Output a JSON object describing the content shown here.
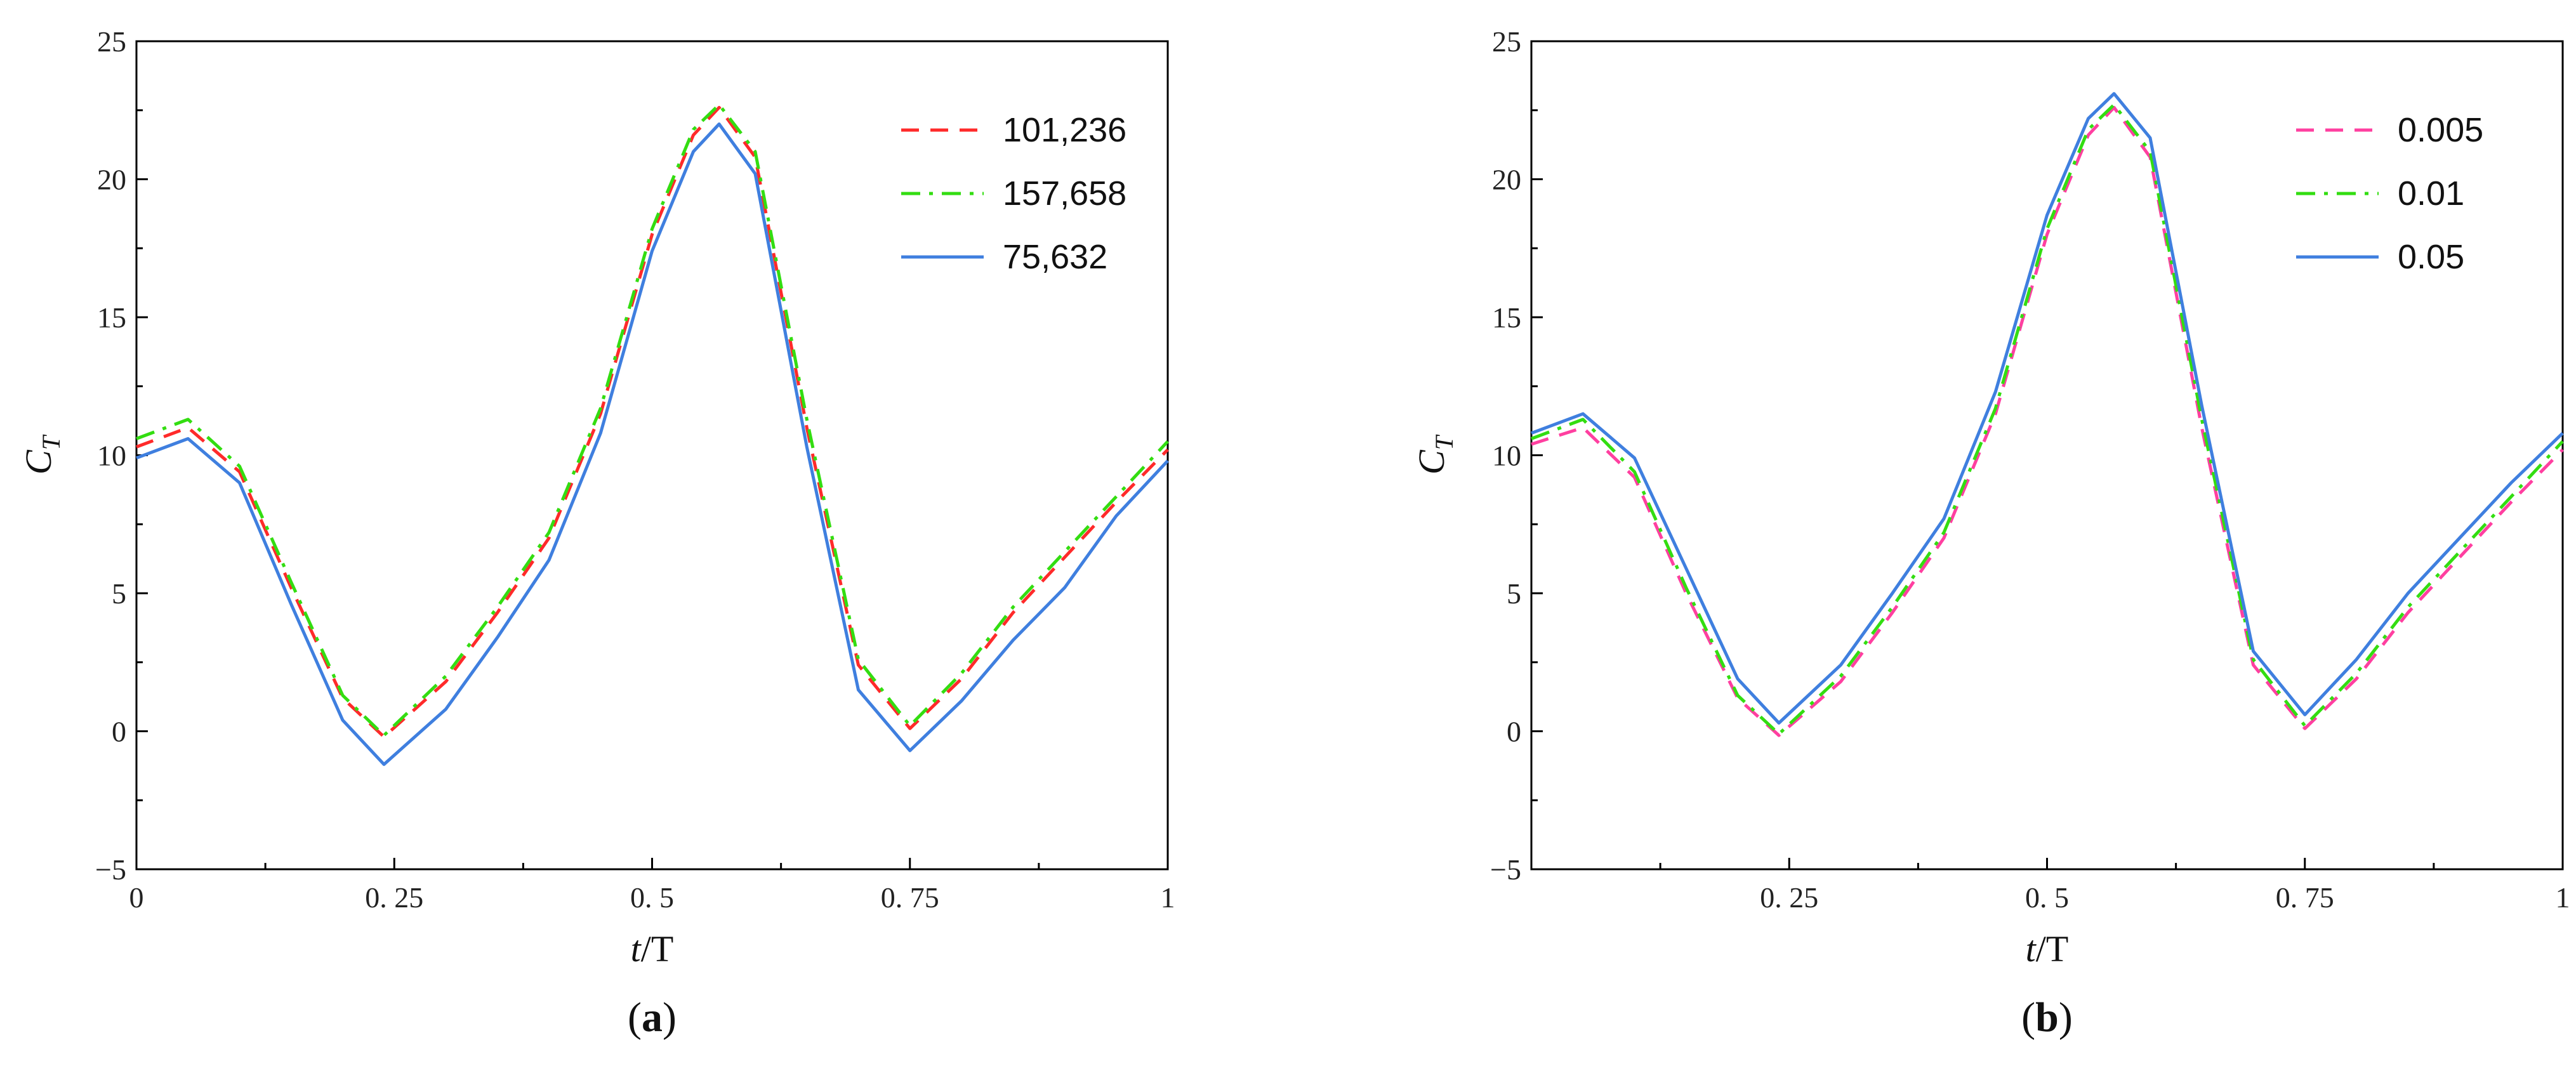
{
  "chart_data": [
    {
      "type": "line",
      "panel_label": "a",
      "xlabel_italic": "t",
      "xlabel_rest": "/T",
      "ylabel_main": "C",
      "ylabel_sub": "T",
      "xlim": [
        0,
        1
      ],
      "ylim": [
        -5,
        25
      ],
      "xticks": [
        0,
        0.25,
        0.5,
        0.75,
        1
      ],
      "xtick_labels": [
        "0",
        "0. 25",
        "0. 5",
        "0. 75",
        "1"
      ],
      "yticks": [
        -5,
        0,
        5,
        10,
        15,
        20,
        25
      ],
      "ytick_labels": [
        "−5",
        "0",
        "5",
        "10",
        "15",
        "20",
        "25"
      ],
      "legend_position": "top-right",
      "series": [
        {
          "name": "101,236",
          "color": "#ff2a2a",
          "style": "dashed",
          "x": [
            0,
            0.05,
            0.1,
            0.15,
            0.2,
            0.24,
            0.3,
            0.35,
            0.4,
            0.45,
            0.5,
            0.54,
            0.565,
            0.6,
            0.65,
            0.7,
            0.75,
            0.8,
            0.85,
            0.9,
            0.95,
            1
          ],
          "y": [
            10.3,
            11.0,
            9.4,
            5.2,
            1.2,
            -0.2,
            1.8,
            4.3,
            7.0,
            11.5,
            18.0,
            21.6,
            22.6,
            20.8,
            11.0,
            2.4,
            0.1,
            1.9,
            4.3,
            6.3,
            8.3,
            10.2
          ]
        },
        {
          "name": "157,658",
          "color": "#33dd11",
          "style": "dashdot",
          "x": [
            0,
            0.05,
            0.1,
            0.15,
            0.2,
            0.24,
            0.3,
            0.35,
            0.4,
            0.45,
            0.5,
            0.54,
            0.565,
            0.6,
            0.65,
            0.7,
            0.75,
            0.8,
            0.85,
            0.9,
            0.95,
            1
          ],
          "y": [
            10.6,
            11.3,
            9.6,
            5.4,
            1.3,
            -0.15,
            2.0,
            4.5,
            7.2,
            11.7,
            18.2,
            21.8,
            22.7,
            21.0,
            11.3,
            2.6,
            0.2,
            2.1,
            4.5,
            6.5,
            8.5,
            10.5
          ]
        },
        {
          "name": "75,632",
          "color": "#3f7fdf",
          "style": "solid",
          "x": [
            0,
            0.05,
            0.1,
            0.15,
            0.2,
            0.24,
            0.3,
            0.35,
            0.4,
            0.45,
            0.5,
            0.54,
            0.565,
            0.6,
            0.65,
            0.7,
            0.75,
            0.8,
            0.85,
            0.9,
            0.95,
            1
          ],
          "y": [
            9.9,
            10.6,
            9.0,
            4.6,
            0.4,
            -1.2,
            0.8,
            3.4,
            6.2,
            10.8,
            17.4,
            21.0,
            22.0,
            20.2,
            10.3,
            1.5,
            -0.7,
            1.1,
            3.3,
            5.2,
            7.8,
            9.8
          ]
        }
      ]
    },
    {
      "type": "line",
      "panel_label": "b",
      "xlabel_italic": "t",
      "xlabel_rest": "/T",
      "ylabel_main": "C",
      "ylabel_sub": "T",
      "xlim": [
        0,
        1
      ],
      "ylim": [
        -5,
        25
      ],
      "xticks": [
        0.25,
        0.5,
        0.75,
        1
      ],
      "xtick_labels": [
        "0. 25",
        "0. 5",
        "0. 75",
        "1"
      ],
      "yticks": [
        -5,
        0,
        5,
        10,
        15,
        20,
        25
      ],
      "ytick_labels": [
        "−5",
        "0",
        "5",
        "10",
        "15",
        "20",
        "25"
      ],
      "legend_position": "top-right",
      "series": [
        {
          "name": "0.005",
          "color": "#ff3fa0",
          "style": "dashed",
          "x": [
            0,
            0.05,
            0.1,
            0.15,
            0.2,
            0.24,
            0.3,
            0.35,
            0.4,
            0.45,
            0.5,
            0.54,
            0.565,
            0.6,
            0.65,
            0.7,
            0.75,
            0.8,
            0.85,
            0.9,
            0.95,
            1
          ],
          "y": [
            10.4,
            11.0,
            9.2,
            5.0,
            1.2,
            -0.15,
            1.8,
            4.3,
            7.0,
            11.5,
            18.0,
            21.6,
            22.6,
            20.8,
            11.0,
            2.4,
            0.1,
            1.9,
            4.3,
            6.3,
            8.3,
            10.2
          ]
        },
        {
          "name": "0.01",
          "color": "#33dd11",
          "style": "dashdot",
          "x": [
            0,
            0.05,
            0.1,
            0.15,
            0.2,
            0.24,
            0.3,
            0.35,
            0.4,
            0.45,
            0.5,
            0.54,
            0.565,
            0.6,
            0.65,
            0.7,
            0.75,
            0.8,
            0.85,
            0.9,
            0.95,
            1
          ],
          "y": [
            10.6,
            11.3,
            9.4,
            5.2,
            1.3,
            -0.1,
            2.0,
            4.5,
            7.2,
            11.7,
            18.2,
            21.8,
            22.7,
            21.0,
            11.3,
            2.6,
            0.2,
            2.1,
            4.5,
            6.5,
            8.5,
            10.5
          ]
        },
        {
          "name": "0.05",
          "color": "#3f7fdf",
          "style": "solid",
          "x": [
            0,
            0.05,
            0.1,
            0.15,
            0.2,
            0.24,
            0.3,
            0.35,
            0.4,
            0.45,
            0.5,
            0.54,
            0.565,
            0.6,
            0.65,
            0.7,
            0.75,
            0.8,
            0.85,
            0.9,
            0.95,
            1
          ],
          "y": [
            10.8,
            11.5,
            9.9,
            5.9,
            1.9,
            0.3,
            2.4,
            5.0,
            7.7,
            12.3,
            18.7,
            22.2,
            23.1,
            21.5,
            11.8,
            2.9,
            0.6,
            2.6,
            5.0,
            7.0,
            9.0,
            10.8
          ]
        }
      ]
    }
  ]
}
